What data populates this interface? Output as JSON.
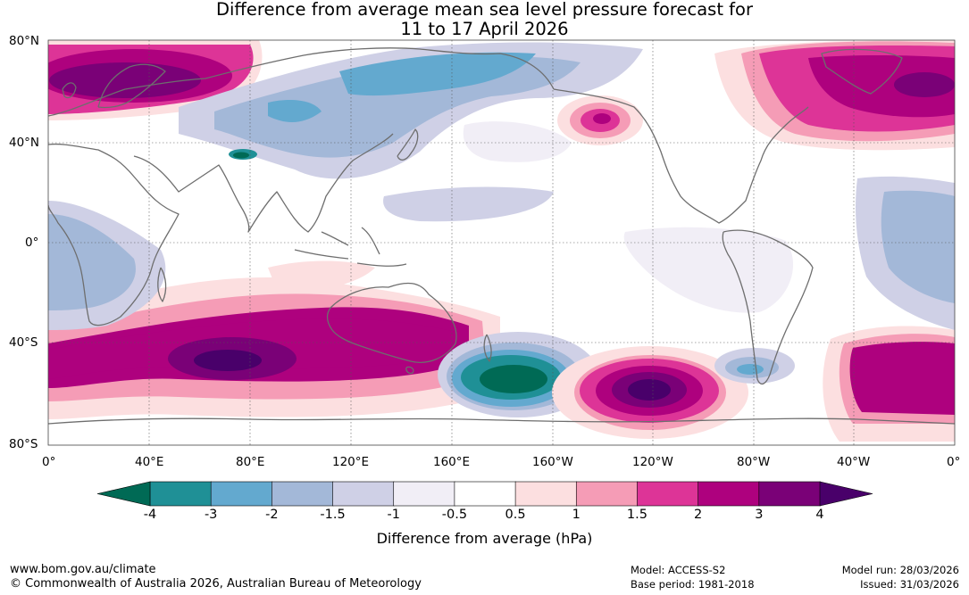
{
  "title": {
    "line1": "Difference from average mean sea level pressure forecast for",
    "line2": "11 to 17 April 2026"
  },
  "map": {
    "lat_labels": [
      "80°N",
      "40°N",
      "0°",
      "40°S",
      "80°S"
    ],
    "lon_labels": [
      "0°",
      "40°E",
      "80°E",
      "120°E",
      "160°E",
      "160°W",
      "120°W",
      "80°W",
      "40°W",
      "0°"
    ],
    "anomalies": [
      {
        "location": "Scandinavia / N Europe",
        "value_hPa": 2.5
      },
      {
        "location": "Siberia / North Pacific",
        "value_hPa": -1.5
      },
      {
        "location": "Central Asia",
        "value_hPa": -3.5
      },
      {
        "location": "Gulf of Alaska",
        "value_hPa": 2.5
      },
      {
        "location": "Greenland / North Atlantic",
        "value_hPa": 3.0
      },
      {
        "location": "Southern Indian Ocean",
        "value_hPa": 3.5
      },
      {
        "location": "South of New Zealand",
        "value_hPa": -4.0
      },
      {
        "location": "South Pacific (120°W)",
        "value_hPa": 3.8
      },
      {
        "location": "South Atlantic",
        "value_hPa": 2.5
      },
      {
        "location": "Drake Passage",
        "value_hPa": -1.5
      }
    ]
  },
  "colorbar": {
    "label": "Difference from average (hPa)",
    "ticks": [
      "-4",
      "-3",
      "-2",
      "-1.5",
      "-1",
      "-0.5",
      "0.5",
      "1",
      "1.5",
      "2",
      "3",
      "4"
    ],
    "colors": {
      "below_min": "#006a55",
      "bins": [
        "#1f9096",
        "#63a9cf",
        "#a3b8d8",
        "#cfd0e6",
        "#f1eef6",
        "#ffffff",
        "#fcdfe0",
        "#f59cb6",
        "#dd3497",
        "#ae017e",
        "#7a0177"
      ],
      "above_max": "#49006a"
    }
  },
  "footer": {
    "url": "www.bom.gov.au/climate",
    "copyright": "© Commonwealth of Australia 2026, Australian Bureau of Meteorology",
    "model": "Model: ACCESS-S2",
    "base_period": "Base period: 1981-2018",
    "model_run": "Model run: 28/03/2026",
    "issued": "Issued: 31/03/2026"
  }
}
